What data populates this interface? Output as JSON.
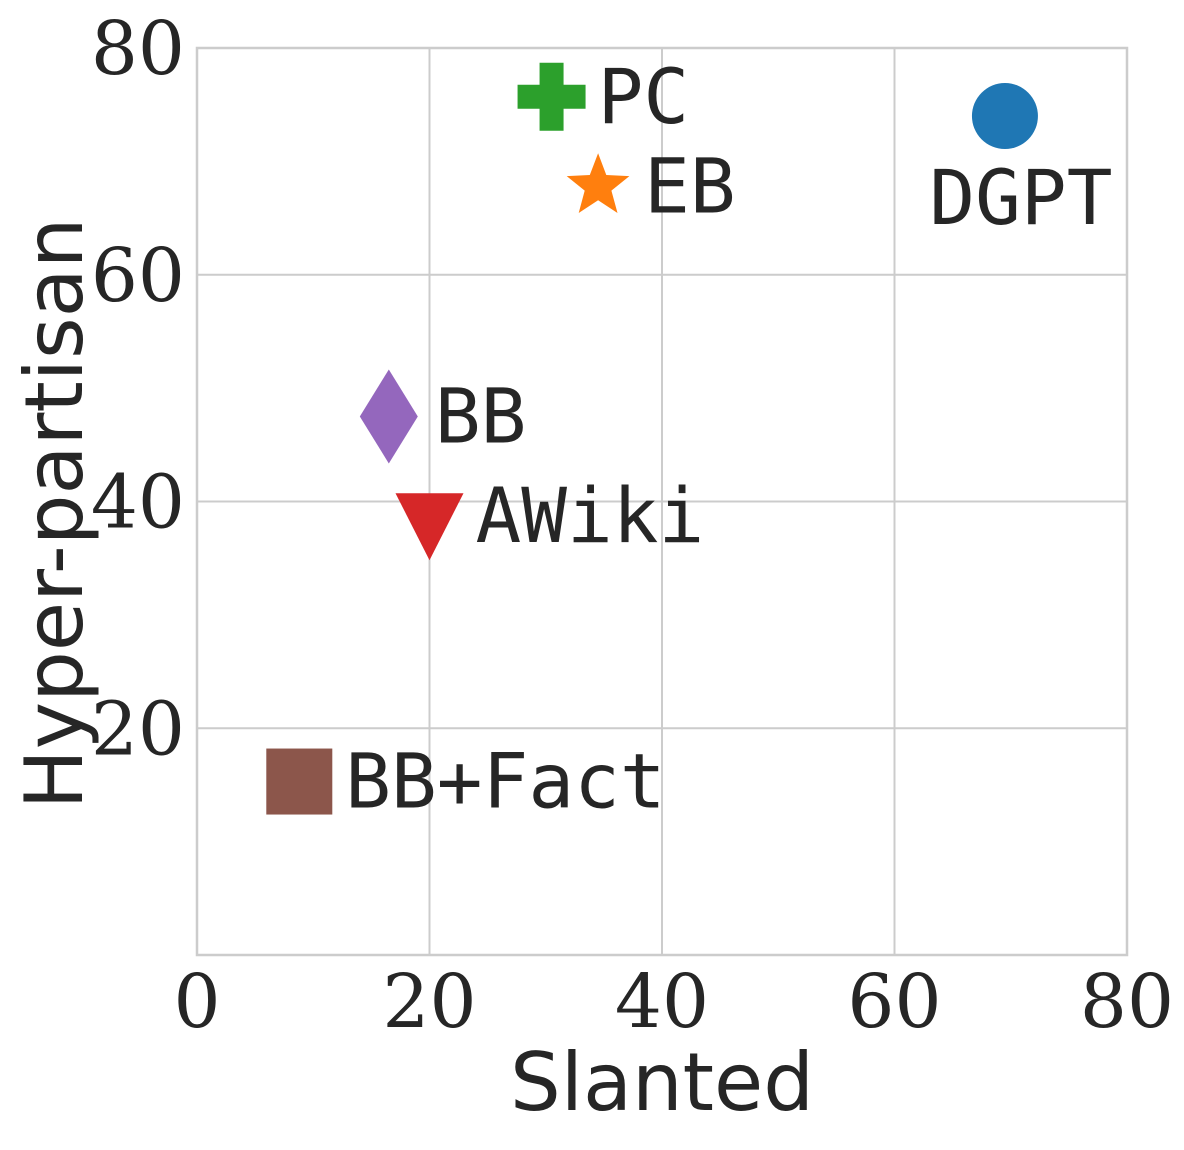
{
  "chart_data": {
    "type": "scatter",
    "title": "",
    "xlabel": "Slanted",
    "ylabel": "Hyper-partisan",
    "xlim": [
      0,
      80
    ],
    "ylim": [
      0,
      80
    ],
    "xticks": [
      "0",
      "20",
      "40",
      "60",
      "80"
    ],
    "yticks": [
      "20",
      "40",
      "60",
      "80"
    ],
    "grid": true,
    "points": [
      {
        "label": "DGPT",
        "x": 69.5,
        "y": 74,
        "marker": "circle",
        "color": "#1f77b4",
        "label_position": "below"
      },
      {
        "label": "PC",
        "x": 30.5,
        "y": 75.7,
        "marker": "plus",
        "color": "#2ca02c",
        "label_position": "right"
      },
      {
        "label": "EB",
        "x": 34.5,
        "y": 67.8,
        "marker": "star",
        "color": "#ff7f0e",
        "label_position": "right"
      },
      {
        "label": "BB",
        "x": 16.5,
        "y": 47.5,
        "marker": "diamond",
        "color": "#9467bd",
        "label_position": "right"
      },
      {
        "label": "AWiki",
        "x": 20,
        "y": 38.7,
        "marker": "triangle-down",
        "color": "#d62728",
        "label_position": "right"
      },
      {
        "label": "BB+Fact",
        "x": 8.8,
        "y": 15.3,
        "marker": "square",
        "color": "#8c564b",
        "label_position": "right"
      }
    ]
  }
}
